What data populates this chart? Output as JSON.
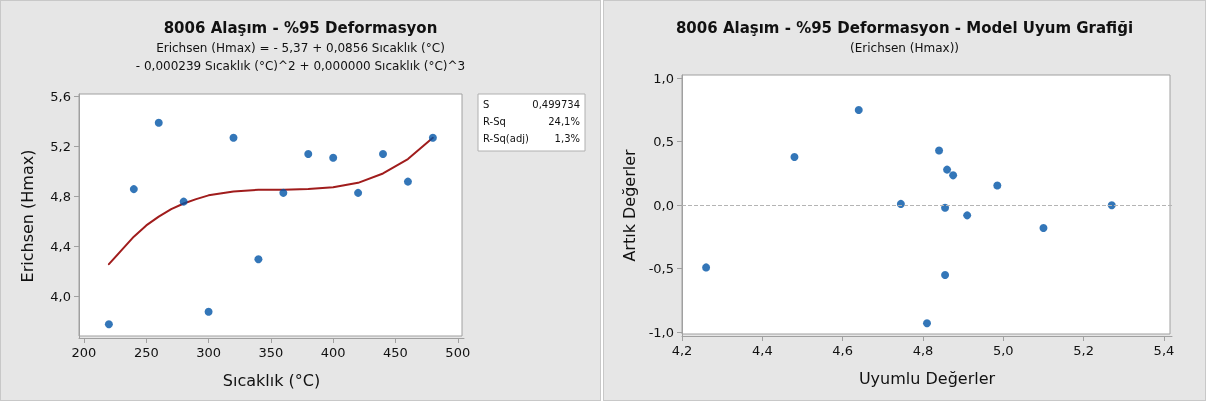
{
  "chart_data": [
    {
      "type": "scatter",
      "title": "8006 Alaşım - %95 Deformasyon",
      "subtitle": "Erichsen (Hmax) = - 5,37 + 0,0856 Sıcaklık (°C)\n- 0,000239 Sıcaklık (°C)^2 + 0,000000 Sıcaklık (°C)^3",
      "xlabel": "Sıcaklık (°C)",
      "ylabel": "Erichsen (Hmax)",
      "annotations": [
        "S 0,499734",
        "R-Sq 24,1%",
        "R-Sq(adj) 1,3%"
      ],
      "x": [
        220,
        240,
        260,
        280,
        300,
        320,
        340,
        360,
        380,
        400,
        420,
        440,
        460,
        480
      ],
      "series": [
        {
          "color": "#0054a6",
          "values": [
            3.78,
            4.86,
            5.39,
            4.76,
            3.88,
            5.27,
            4.3,
            4.83,
            5.14,
            5.11,
            4.83,
            5.14,
            4.92,
            5.27
          ]
        },
        {
          "type": "line",
          "color": "#a01c1c",
          "marker": "none",
          "x": [
            220,
            230,
            240,
            250,
            260,
            270,
            280,
            290,
            300,
            320,
            340,
            360,
            380,
            400,
            420,
            440,
            460,
            480
          ],
          "values": [
            4.26,
            4.37,
            4.48,
            4.57,
            4.64,
            4.7,
            4.745,
            4.78,
            4.81,
            4.84,
            4.855,
            4.855,
            4.86,
            4.875,
            4.91,
            4.985,
            5.1,
            5.27
          ]
        }
      ],
      "marker": "circle",
      "grid": false,
      "xlim": [
        196,
        505
      ],
      "xticks": [
        200,
        250,
        300,
        350,
        400,
        450,
        500
      ],
      "ylim": [
        3.67,
        5.62
      ],
      "yticks": [
        {
          "value": 4.0,
          "label": "4,0"
        },
        {
          "value": 4.4,
          "label": "4,4"
        },
        {
          "value": 4.8,
          "label": "4,8"
        },
        {
          "value": 5.2,
          "label": "5,2"
        },
        {
          "value": 5.6,
          "label": "5,6"
        }
      ]
    },
    {
      "type": "scatter",
      "title": "8006 Alaşım - %95 Deformasyon - Model Uyum Grafiği",
      "subtitle": "(Erichsen (Hmax))",
      "xlabel": "Uyumlu Değerler",
      "ylabel": "Artık Değerler",
      "x": [
        4.26,
        4.48,
        4.64,
        4.745,
        4.81,
        4.84,
        4.855,
        4.855,
        4.86,
        4.875,
        4.91,
        4.985,
        5.1,
        5.27
      ],
      "series": [
        {
          "color": "#0054a6",
          "values": [
            -0.49,
            0.38,
            0.75,
            0.01,
            -0.93,
            0.43,
            -0.55,
            -0.02,
            0.28,
            0.235,
            -0.08,
            0.155,
            -0.18,
            0.0
          ]
        }
      ],
      "marker": "circle",
      "grid": false,
      "ref_lines": [
        {
          "axis": "y",
          "value": 0,
          "color": "#b4b4b4",
          "line_style": "dashed"
        }
      ],
      "xlim": [
        4.2,
        5.42
      ],
      "xticks": [
        {
          "value": 4.2,
          "label": "4,2"
        },
        {
          "value": 4.4,
          "label": "4,4"
        },
        {
          "value": 4.6,
          "label": "4,6"
        },
        {
          "value": 4.8,
          "label": "4,8"
        },
        {
          "value": 5.0,
          "label": "5,0"
        },
        {
          "value": 5.2,
          "label": "5,2"
        },
        {
          "value": 5.4,
          "label": "5,4"
        }
      ],
      "ylim": [
        -1.03,
        1.025
      ],
      "yticks": [
        {
          "value": -1.0,
          "label": "-1,0"
        },
        {
          "value": -0.5,
          "label": "-0,5"
        },
        {
          "value": 0.0,
          "label": "0,0"
        },
        {
          "value": 0.5,
          "label": "0,5"
        },
        {
          "value": 1.0,
          "label": "1,0"
        }
      ]
    }
  ]
}
